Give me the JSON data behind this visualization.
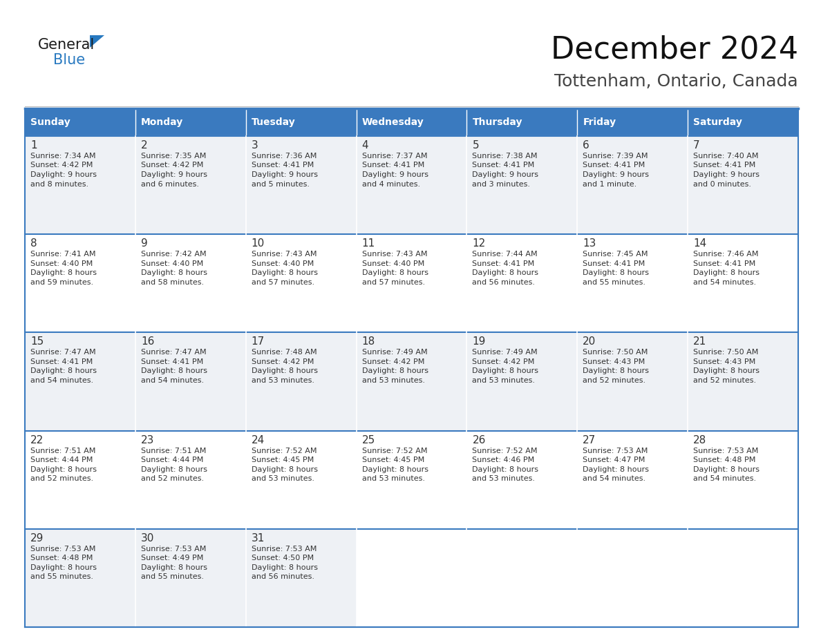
{
  "title": "December 2024",
  "subtitle": "Tottenham, Ontario, Canada",
  "header_bg": "#3a7abf",
  "header_text": "#FFFFFF",
  "row_bg_light": "#eef1f5",
  "row_bg_white": "#FFFFFF",
  "border_color": "#3a7abf",
  "text_color": "#333333",
  "day_headers": [
    "Sunday",
    "Monday",
    "Tuesday",
    "Wednesday",
    "Thursday",
    "Friday",
    "Saturday"
  ],
  "days": [
    {
      "day": "1",
      "col": 0,
      "row": 0,
      "sunrise": "7:34 AM",
      "sunset": "4:42 PM",
      "dl1": "9 hours",
      "dl2": "and 8 minutes."
    },
    {
      "day": "2",
      "col": 1,
      "row": 0,
      "sunrise": "7:35 AM",
      "sunset": "4:42 PM",
      "dl1": "9 hours",
      "dl2": "and 6 minutes."
    },
    {
      "day": "3",
      "col": 2,
      "row": 0,
      "sunrise": "7:36 AM",
      "sunset": "4:41 PM",
      "dl1": "9 hours",
      "dl2": "and 5 minutes."
    },
    {
      "day": "4",
      "col": 3,
      "row": 0,
      "sunrise": "7:37 AM",
      "sunset": "4:41 PM",
      "dl1": "9 hours",
      "dl2": "and 4 minutes."
    },
    {
      "day": "5",
      "col": 4,
      "row": 0,
      "sunrise": "7:38 AM",
      "sunset": "4:41 PM",
      "dl1": "9 hours",
      "dl2": "and 3 minutes."
    },
    {
      "day": "6",
      "col": 5,
      "row": 0,
      "sunrise": "7:39 AM",
      "sunset": "4:41 PM",
      "dl1": "9 hours",
      "dl2": "and 1 minute."
    },
    {
      "day": "7",
      "col": 6,
      "row": 0,
      "sunrise": "7:40 AM",
      "sunset": "4:41 PM",
      "dl1": "9 hours",
      "dl2": "and 0 minutes."
    },
    {
      "day": "8",
      "col": 0,
      "row": 1,
      "sunrise": "7:41 AM",
      "sunset": "4:40 PM",
      "dl1": "8 hours",
      "dl2": "and 59 minutes."
    },
    {
      "day": "9",
      "col": 1,
      "row": 1,
      "sunrise": "7:42 AM",
      "sunset": "4:40 PM",
      "dl1": "8 hours",
      "dl2": "and 58 minutes."
    },
    {
      "day": "10",
      "col": 2,
      "row": 1,
      "sunrise": "7:43 AM",
      "sunset": "4:40 PM",
      "dl1": "8 hours",
      "dl2": "and 57 minutes."
    },
    {
      "day": "11",
      "col": 3,
      "row": 1,
      "sunrise": "7:43 AM",
      "sunset": "4:40 PM",
      "dl1": "8 hours",
      "dl2": "and 57 minutes."
    },
    {
      "day": "12",
      "col": 4,
      "row": 1,
      "sunrise": "7:44 AM",
      "sunset": "4:41 PM",
      "dl1": "8 hours",
      "dl2": "and 56 minutes."
    },
    {
      "day": "13",
      "col": 5,
      "row": 1,
      "sunrise": "7:45 AM",
      "sunset": "4:41 PM",
      "dl1": "8 hours",
      "dl2": "and 55 minutes."
    },
    {
      "day": "14",
      "col": 6,
      "row": 1,
      "sunrise": "7:46 AM",
      "sunset": "4:41 PM",
      "dl1": "8 hours",
      "dl2": "and 54 minutes."
    },
    {
      "day": "15",
      "col": 0,
      "row": 2,
      "sunrise": "7:47 AM",
      "sunset": "4:41 PM",
      "dl1": "8 hours",
      "dl2": "and 54 minutes."
    },
    {
      "day": "16",
      "col": 1,
      "row": 2,
      "sunrise": "7:47 AM",
      "sunset": "4:41 PM",
      "dl1": "8 hours",
      "dl2": "and 54 minutes."
    },
    {
      "day": "17",
      "col": 2,
      "row": 2,
      "sunrise": "7:48 AM",
      "sunset": "4:42 PM",
      "dl1": "8 hours",
      "dl2": "and 53 minutes."
    },
    {
      "day": "18",
      "col": 3,
      "row": 2,
      "sunrise": "7:49 AM",
      "sunset": "4:42 PM",
      "dl1": "8 hours",
      "dl2": "and 53 minutes."
    },
    {
      "day": "19",
      "col": 4,
      "row": 2,
      "sunrise": "7:49 AM",
      "sunset": "4:42 PM",
      "dl1": "8 hours",
      "dl2": "and 53 minutes."
    },
    {
      "day": "20",
      "col": 5,
      "row": 2,
      "sunrise": "7:50 AM",
      "sunset": "4:43 PM",
      "dl1": "8 hours",
      "dl2": "and 52 minutes."
    },
    {
      "day": "21",
      "col": 6,
      "row": 2,
      "sunrise": "7:50 AM",
      "sunset": "4:43 PM",
      "dl1": "8 hours",
      "dl2": "and 52 minutes."
    },
    {
      "day": "22",
      "col": 0,
      "row": 3,
      "sunrise": "7:51 AM",
      "sunset": "4:44 PM",
      "dl1": "8 hours",
      "dl2": "and 52 minutes."
    },
    {
      "day": "23",
      "col": 1,
      "row": 3,
      "sunrise": "7:51 AM",
      "sunset": "4:44 PM",
      "dl1": "8 hours",
      "dl2": "and 52 minutes."
    },
    {
      "day": "24",
      "col": 2,
      "row": 3,
      "sunrise": "7:52 AM",
      "sunset": "4:45 PM",
      "dl1": "8 hours",
      "dl2": "and 53 minutes."
    },
    {
      "day": "25",
      "col": 3,
      "row": 3,
      "sunrise": "7:52 AM",
      "sunset": "4:45 PM",
      "dl1": "8 hours",
      "dl2": "and 53 minutes."
    },
    {
      "day": "26",
      "col": 4,
      "row": 3,
      "sunrise": "7:52 AM",
      "sunset": "4:46 PM",
      "dl1": "8 hours",
      "dl2": "and 53 minutes."
    },
    {
      "day": "27",
      "col": 5,
      "row": 3,
      "sunrise": "7:53 AM",
      "sunset": "4:47 PM",
      "dl1": "8 hours",
      "dl2": "and 54 minutes."
    },
    {
      "day": "28",
      "col": 6,
      "row": 3,
      "sunrise": "7:53 AM",
      "sunset": "4:48 PM",
      "dl1": "8 hours",
      "dl2": "and 54 minutes."
    },
    {
      "day": "29",
      "col": 0,
      "row": 4,
      "sunrise": "7:53 AM",
      "sunset": "4:48 PM",
      "dl1": "8 hours",
      "dl2": "and 55 minutes."
    },
    {
      "day": "30",
      "col": 1,
      "row": 4,
      "sunrise": "7:53 AM",
      "sunset": "4:49 PM",
      "dl1": "8 hours",
      "dl2": "and 55 minutes."
    },
    {
      "day": "31",
      "col": 2,
      "row": 4,
      "sunrise": "7:53 AM",
      "sunset": "4:50 PM",
      "dl1": "8 hours",
      "dl2": "and 56 minutes."
    }
  ],
  "logo_color_general": "#1a1a1a",
  "logo_color_blue": "#2879c0",
  "logo_triangle_color": "#2879c0",
  "title_fontsize": 32,
  "subtitle_fontsize": 18,
  "header_fontsize": 10,
  "daynum_fontsize": 11,
  "cell_fontsize": 8
}
